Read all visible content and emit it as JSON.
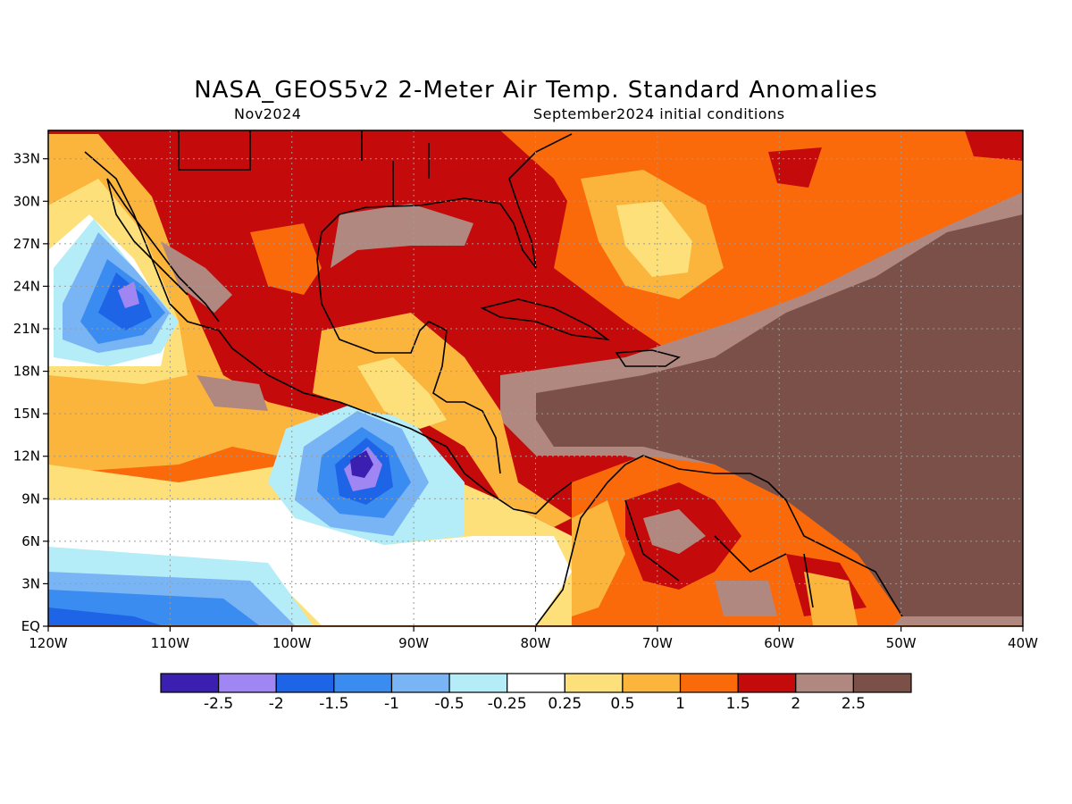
{
  "header": {
    "title": "NASA_GEOS5v2 2-Meter Air Temp. Standard Anomalies",
    "valid_month": "Nov2024",
    "initial_conditions": "September2024 initial conditions"
  },
  "map": {
    "region": {
      "lon_min": -120,
      "lon_max": -40,
      "lat_min": 0,
      "lat_max": 35
    },
    "lat_ticks": [
      {
        "value": 33,
        "label": "33N"
      },
      {
        "value": 30,
        "label": "30N"
      },
      {
        "value": 27,
        "label": "27N"
      },
      {
        "value": 24,
        "label": "24N"
      },
      {
        "value": 21,
        "label": "21N"
      },
      {
        "value": 18,
        "label": "18N"
      },
      {
        "value": 15,
        "label": "15N"
      },
      {
        "value": 12,
        "label": "12N"
      },
      {
        "value": 9,
        "label": "9N"
      },
      {
        "value": 6,
        "label": "6N"
      },
      {
        "value": 3,
        "label": "3N"
      },
      {
        "value": 0,
        "label": "EQ"
      }
    ],
    "lon_ticks": [
      {
        "value": -120,
        "label": "120W"
      },
      {
        "value": -110,
        "label": "110W"
      },
      {
        "value": -100,
        "label": "100W"
      },
      {
        "value": -90,
        "label": "90W"
      },
      {
        "value": -80,
        "label": "80W"
      },
      {
        "value": -70,
        "label": "70W"
      },
      {
        "value": -60,
        "label": "60W"
      },
      {
        "value": -50,
        "label": "50W"
      },
      {
        "value": -40,
        "label": "40W"
      }
    ]
  },
  "colorbar": {
    "colors": [
      "#3a1fb0",
      "#9f86f2",
      "#1e64e6",
      "#3b8cf0",
      "#79b4f5",
      "#b4ecf8",
      "#ffffff",
      "#fde07a",
      "#fbb43c",
      "#fa6a0a",
      "#c40a0a",
      "#b08880",
      "#7a5048"
    ],
    "labels": [
      "-2.5",
      "-2",
      "-1.5",
      "-1",
      "-0.5",
      "-0.25",
      "0.25",
      "0.5",
      "1",
      "1.5",
      "2",
      "2.5"
    ]
  }
}
